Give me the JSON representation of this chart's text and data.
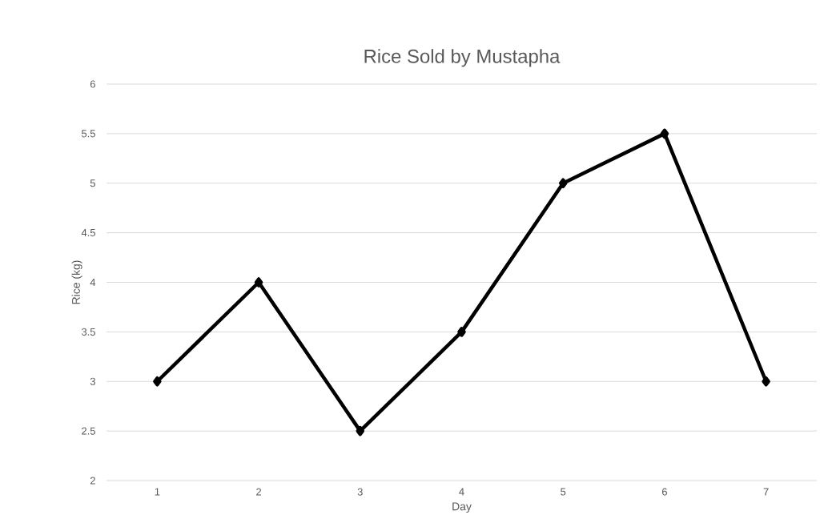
{
  "chart_data": {
    "type": "line",
    "title": "Rice Sold by Mustapha",
    "xlabel": "Day",
    "ylabel": "Rice (kg)",
    "categories": [
      "1",
      "2",
      "3",
      "4",
      "5",
      "6",
      "7"
    ],
    "series": [
      {
        "color": "#000000",
        "values": [
          3,
          4,
          2.5,
          3.5,
          5,
          5.5,
          3
        ]
      }
    ],
    "ylim": [
      2,
      6
    ],
    "yticks": [
      2,
      2.5,
      3,
      3.5,
      4,
      4.5,
      5,
      5.5,
      6
    ],
    "grid": "y",
    "legend": false,
    "marker": "diamond",
    "line_style": "solid"
  }
}
